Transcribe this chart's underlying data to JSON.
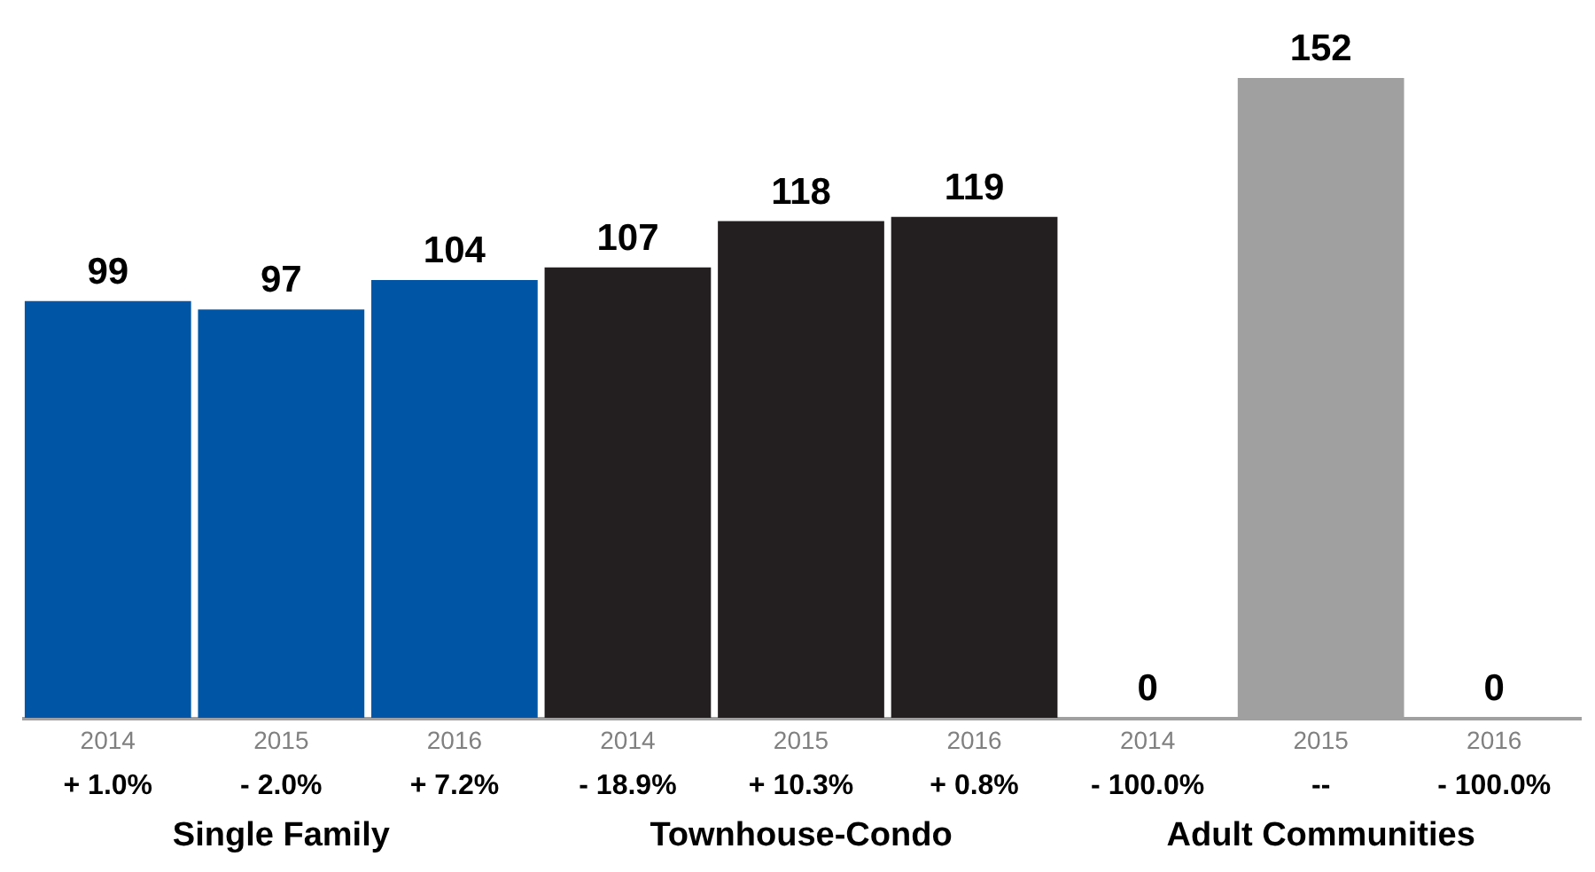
{
  "chart_data": {
    "type": "bar",
    "categories": [
      "2014",
      "2015",
      "2016",
      "2014",
      "2015",
      "2016",
      "2014",
      "2015",
      "2016"
    ],
    "values": [
      99,
      97,
      104,
      107,
      118,
      119,
      0,
      152,
      0
    ],
    "colors": [
      "#0055a5",
      "#0055a5",
      "#0055a5",
      "#231f20",
      "#231f20",
      "#231f20",
      "#a0a0a0",
      "#a0a0a0",
      "#a0a0a0"
    ],
    "data_labels": true,
    "annotations": [
      "+ 1.0%",
      "- 2.0%",
      "+ 7.2%",
      "- 18.9%",
      "+ 10.3%",
      "+ 0.8%",
      "- 100.0%",
      "--",
      "- 100.0%",
      "Single Family",
      "Townhouse-Condo",
      "Adult Communities"
    ]
  }
}
